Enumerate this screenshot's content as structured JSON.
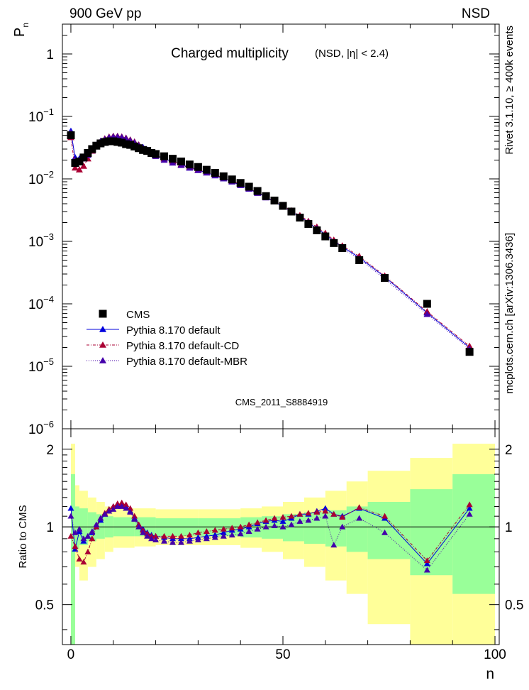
{
  "header": {
    "left": "900 GeV pp",
    "right": "NSD"
  },
  "title": {
    "main": "Charged multiplicity",
    "sub": "(NSD, |η| < 2.4)"
  },
  "watermark": "CMS_2011_S8884919",
  "side_labels": {
    "rivet": "Rivet 3.1.10, ≥ 400k events",
    "mcplots": "mcplots.cern.ch [arXiv:1306.3436]"
  },
  "axes": {
    "top_ylabel": "P",
    "top_ylabel_sub": "n",
    "bottom_ylabel": "Ratio to CMS",
    "xlabel": "n",
    "x_ticks": [
      "0",
      "50",
      "100"
    ],
    "top_y_ticks": [
      {
        "base": "1",
        "exp": ""
      },
      {
        "base": "10",
        "exp": "−1"
      },
      {
        "base": "10",
        "exp": "−2"
      },
      {
        "base": "10",
        "exp": "−3"
      },
      {
        "base": "10",
        "exp": "−4"
      },
      {
        "base": "10",
        "exp": "−5"
      },
      {
        "base": "10",
        "exp": "−6"
      }
    ],
    "ratio_ticks": [
      "2",
      "1",
      "0.5"
    ]
  },
  "legend": [
    {
      "label": "CMS",
      "color": "#000000",
      "marker": "square",
      "dash": ""
    },
    {
      "label": "Pythia 8.170 default",
      "color": "#0000dd",
      "marker": "triangle",
      "dash": ""
    },
    {
      "label": "Pythia 8.170 default-CD",
      "color": "#aa0033",
      "marker": "triangle",
      "dash": "4,2,1,2"
    },
    {
      "label": "Pythia 8.170 default-MBR",
      "color": "#4400aa",
      "marker": "triangle",
      "dash": "1,2"
    }
  ],
  "chart_data": [
    {
      "type": "scatter",
      "title": "Charged multiplicity",
      "xlabel": "n",
      "ylabel": "P_n",
      "xlim": [
        -2,
        101
      ],
      "ylim": [
        1e-06,
        3
      ],
      "yscale": "log",
      "x": [
        0,
        1,
        2,
        3,
        4,
        5,
        6,
        7,
        8,
        9,
        10,
        11,
        12,
        13,
        14,
        15,
        16,
        17,
        18,
        19,
        20,
        22,
        24,
        26,
        28,
        30,
        32,
        34,
        36,
        38,
        40,
        42,
        44,
        46,
        48,
        50,
        52,
        54,
        56,
        58,
        60,
        62,
        64,
        68,
        74,
        84,
        94
      ],
      "series": [
        {
          "name": "CMS",
          "values": [
            0.05,
            0.018,
            0.019,
            0.022,
            0.026,
            0.03,
            0.034,
            0.037,
            0.039,
            0.04,
            0.04,
            0.039,
            0.038,
            0.036,
            0.035,
            0.033,
            0.031,
            0.029,
            0.028,
            0.026,
            0.025,
            0.023,
            0.021,
            0.019,
            0.017,
            0.0155,
            0.014,
            0.0125,
            0.011,
            0.0098,
            0.0086,
            0.0075,
            0.0064,
            0.0053,
            0.0045,
            0.0037,
            0.003,
            0.0024,
            0.0019,
            0.0015,
            0.0012,
            0.00094,
            0.00078,
            0.0005,
            0.00026,
            0.0001,
            1.7e-05
          ]
        },
        {
          "name": "Pythia 8.170 default",
          "values": [
            0.058,
            0.022,
            0.021,
            0.021,
            0.024,
            0.028,
            0.034,
            0.039,
            0.043,
            0.046,
            0.048,
            0.048,
            0.047,
            0.045,
            0.042,
            0.039,
            0.035,
            0.032,
            0.029,
            0.026,
            0.024,
            0.021,
            0.019,
            0.017,
            0.015,
            0.0138,
            0.0126,
            0.0113,
            0.0101,
            0.009,
            0.0079,
            0.0069,
            0.006,
            0.0051,
            0.0043,
            0.0036,
            0.003,
            0.0025,
            0.002,
            0.0016,
            0.0013,
            0.001,
            0.00082,
            0.00055,
            0.00027,
            7.2e-05,
            2e-05
          ]
        },
        {
          "name": "Pythia 8.170 default-CD",
          "values": [
            0.046,
            0.015,
            0.014,
            0.016,
            0.021,
            0.028,
            0.034,
            0.04,
            0.044,
            0.047,
            0.048,
            0.048,
            0.047,
            0.045,
            0.042,
            0.039,
            0.035,
            0.031,
            0.028,
            0.026,
            0.024,
            0.021,
            0.019,
            0.017,
            0.0154,
            0.014,
            0.0128,
            0.0116,
            0.0104,
            0.0093,
            0.0082,
            0.0071,
            0.0061,
            0.0052,
            0.0044,
            0.0037,
            0.0031,
            0.0026,
            0.0021,
            0.0017,
            0.00135,
            0.00105,
            0.00085,
            0.00058,
            0.00028,
            7.5e-05,
            2.1e-05
          ]
        },
        {
          "name": "Pythia 8.170 default-MBR",
          "values": [
            0.055,
            0.02,
            0.02,
            0.021,
            0.024,
            0.029,
            0.035,
            0.04,
            0.043,
            0.046,
            0.047,
            0.047,
            0.046,
            0.044,
            0.041,
            0.038,
            0.034,
            0.031,
            0.028,
            0.025,
            0.023,
            0.02,
            0.018,
            0.0165,
            0.015,
            0.0137,
            0.0125,
            0.0113,
            0.0101,
            0.009,
            0.0079,
            0.0069,
            0.0059,
            0.005,
            0.0043,
            0.0036,
            0.003,
            0.0024,
            0.002,
            0.0016,
            0.0012,
            0.00095,
            0.00077,
            0.00053,
            0.00025,
            6.8e-05,
            1.9e-05
          ]
        }
      ]
    },
    {
      "type": "scatter",
      "ylabel": "Ratio to CMS",
      "xlabel": "n",
      "xlim": [
        -2,
        101
      ],
      "ylim": [
        0.35,
        2.4
      ],
      "yscale": "log",
      "x": [
        0,
        1,
        2,
        3,
        4,
        5,
        6,
        7,
        8,
        9,
        10,
        11,
        12,
        13,
        14,
        15,
        16,
        17,
        18,
        19,
        20,
        22,
        24,
        26,
        28,
        30,
        32,
        34,
        36,
        38,
        40,
        42,
        44,
        46,
        48,
        50,
        52,
        54,
        56,
        58,
        60,
        62,
        64,
        68,
        74,
        84,
        94
      ],
      "bands": {
        "edges": [
          0,
          1,
          2,
          4,
          6,
          8,
          10,
          15,
          20,
          30,
          40,
          45,
          50,
          55,
          60,
          65,
          70,
          80,
          90,
          100
        ],
        "green_low": [
          0.35,
          0.82,
          0.85,
          0.88,
          0.9,
          0.91,
          0.92,
          0.92,
          0.92,
          0.92,
          0.91,
          0.9,
          0.88,
          0.86,
          0.84,
          0.8,
          0.75,
          0.65,
          0.55
        ],
        "green_high": [
          1.6,
          1.2,
          1.18,
          1.14,
          1.12,
          1.1,
          1.09,
          1.09,
          1.08,
          1.08,
          1.09,
          1.1,
          1.12,
          1.14,
          1.16,
          1.2,
          1.25,
          1.4,
          1.6
        ],
        "yellow_low": [
          0.35,
          0.7,
          0.62,
          0.7,
          0.75,
          0.8,
          0.83,
          0.84,
          0.85,
          0.85,
          0.83,
          0.8,
          0.75,
          0.7,
          0.62,
          0.55,
          0.42,
          0.35,
          0.35
        ],
        "yellow_high": [
          2.1,
          1.45,
          1.38,
          1.3,
          1.25,
          1.2,
          1.18,
          1.18,
          1.17,
          1.17,
          1.18,
          1.2,
          1.25,
          1.3,
          1.38,
          1.5,
          1.65,
          1.85,
          2.1
        ]
      },
      "series": [
        {
          "name": "Pythia 8.170 default",
          "values": [
            1.18,
            0.82,
            0.96,
            0.88,
            0.92,
            0.95,
            1.0,
            1.06,
            1.12,
            1.17,
            1.2,
            1.22,
            1.22,
            1.2,
            1.15,
            1.08,
            1.02,
            0.98,
            0.95,
            0.93,
            0.92,
            0.91,
            0.9,
            0.9,
            0.9,
            0.91,
            0.92,
            0.93,
            0.95,
            0.97,
            0.98,
            1.0,
            1.03,
            1.05,
            1.06,
            1.05,
            1.08,
            1.12,
            1.12,
            1.15,
            1.18,
            1.12,
            1.1,
            1.18,
            1.08,
            0.72,
            1.18
          ]
        },
        {
          "name": "Pythia 8.170 default-CD",
          "values": [
            0.92,
            0.84,
            0.75,
            0.73,
            0.8,
            0.9,
            1.0,
            1.08,
            1.13,
            1.17,
            1.2,
            1.23,
            1.24,
            1.22,
            1.18,
            1.1,
            1.02,
            0.97,
            0.94,
            0.92,
            0.92,
            0.92,
            0.92,
            0.92,
            0.93,
            0.95,
            0.96,
            0.97,
            0.98,
            0.99,
            1.0,
            1.02,
            1.04,
            1.06,
            1.08,
            1.09,
            1.1,
            1.12,
            1.13,
            1.14,
            1.15,
            1.12,
            1.09,
            1.19,
            1.1,
            0.74,
            1.22
          ]
        },
        {
          "name": "Pythia 8.170 default-MBR",
          "values": [
            1.1,
            0.95,
            0.98,
            0.9,
            0.92,
            0.96,
            1.02,
            1.08,
            1.12,
            1.15,
            1.17,
            1.2,
            1.2,
            1.18,
            1.14,
            1.07,
            1.0,
            0.95,
            0.92,
            0.9,
            0.89,
            0.88,
            0.87,
            0.87,
            0.88,
            0.89,
            0.9,
            0.91,
            0.92,
            0.93,
            0.94,
            0.96,
            0.98,
            1.0,
            1.01,
            1.0,
            1.02,
            1.05,
            1.06,
            1.08,
            1.1,
            0.85,
            1.0,
            1.08,
            0.95,
            0.68,
            1.12
          ]
        }
      ]
    }
  ]
}
